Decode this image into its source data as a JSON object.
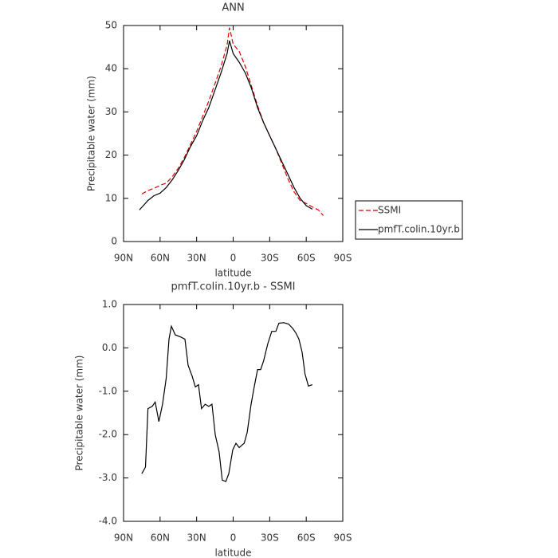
{
  "chart_data": [
    {
      "type": "line",
      "title": "ANN",
      "xlabel": "latitude",
      "ylabel": "Precipitable water (mm)",
      "xlim": [
        90,
        -90
      ],
      "xticks": [
        {
          "value": 90,
          "label": "90N"
        },
        {
          "value": 60,
          "label": "60N"
        },
        {
          "value": 30,
          "label": "30N"
        },
        0,
        {
          "value": -30,
          "label": "30S"
        },
        {
          "value": -60,
          "label": "60S"
        },
        {
          "value": -90,
          "label": "90S"
        }
      ],
      "ylim": [
        0,
        50
      ],
      "yticks": [
        0,
        10,
        20,
        30,
        40,
        50
      ],
      "legend": "right",
      "series": [
        {
          "name": "SSMI",
          "color": "#e00000",
          "linestyle": "dashed",
          "x": [
            75,
            70,
            65,
            60,
            55,
            50,
            45,
            40,
            35,
            30,
            25,
            20,
            15,
            10,
            5,
            3,
            0,
            -5,
            -10,
            -15,
            -20,
            -25,
            -30,
            -35,
            -40,
            -45,
            -50,
            -55,
            -60,
            -65,
            -70,
            -74
          ],
          "values": [
            11,
            11.8,
            12.3,
            13,
            13.5,
            15,
            17,
            19.5,
            22.5,
            25.5,
            29,
            32.5,
            36.5,
            40.5,
            45.5,
            49.5,
            45.7,
            44,
            40.5,
            36,
            31.5,
            27.5,
            24.5,
            21.5,
            18,
            14.5,
            11.5,
            9.5,
            8.8,
            8,
            7.3,
            6
          ]
        },
        {
          "name": "pmfT.colin.10yr.b",
          "color": "#000000",
          "linestyle": "solid",
          "x": [
            77,
            70,
            65,
            60,
            55,
            50,
            45,
            40,
            35,
            30,
            25,
            20,
            15,
            10,
            5,
            3,
            0,
            -5,
            -10,
            -15,
            -20,
            -25,
            -30,
            -35,
            -40,
            -45,
            -50,
            -55,
            -60,
            -65
          ],
          "values": [
            7.3,
            9.5,
            10.6,
            11.2,
            12.5,
            14.3,
            16.5,
            19,
            22,
            24.5,
            28,
            31,
            35,
            39,
            43.5,
            46.5,
            43.5,
            41.5,
            39,
            35.5,
            31,
            27.5,
            24.5,
            21.5,
            18.5,
            15.5,
            12.5,
            10,
            8.3,
            7.5
          ]
        }
      ]
    },
    {
      "type": "line",
      "title": "pmfT.colin.10yr.b - SSMI",
      "xlabel": "latitude",
      "ylabel": "Precipitable water (mm)",
      "xlim": [
        90,
        -90
      ],
      "xticks": [
        {
          "value": 90,
          "label": "90N"
        },
        {
          "value": 60,
          "label": "60N"
        },
        {
          "value": 30,
          "label": "30N"
        },
        0,
        {
          "value": -30,
          "label": "30S"
        },
        {
          "value": -60,
          "label": "60S"
        },
        {
          "value": -90,
          "label": "90S"
        }
      ],
      "ylim": [
        -4,
        1
      ],
      "yticks": [
        {
          "value": -4,
          "label": "-4.0"
        },
        {
          "value": -3,
          "label": "-3.0"
        },
        {
          "value": -2,
          "label": "-2.0"
        },
        {
          "value": -1,
          "label": "-1.0"
        },
        {
          "value": 0,
          "label": "0.0"
        },
        {
          "value": 1,
          "label": "1.0"
        }
      ],
      "series": [
        {
          "color": "#000000",
          "linestyle": "solid",
          "x": [
            75,
            72,
            70,
            66.5,
            64,
            61,
            58,
            55,
            52.7,
            50.7,
            47.5,
            43,
            39.6,
            37,
            33.7,
            31,
            28.5,
            26,
            23,
            20,
            17.4,
            14.7,
            11.5,
            9,
            6,
            3.6,
            0.3,
            -2.3,
            -5,
            -9,
            -11.5,
            -14.7,
            -17.3,
            -20,
            -22.6,
            -25,
            -28.5,
            -31.7,
            -35,
            -37.6,
            -41.6,
            -45.5,
            -48.8,
            -51.4,
            -54,
            -56.6,
            -59,
            -61.8,
            -65
          ],
          "values": [
            -2.9,
            -2.75,
            -1.4,
            -1.35,
            -1.25,
            -1.7,
            -1.3,
            -0.7,
            0.2,
            0.5,
            0.3,
            0.25,
            0.2,
            -0.4,
            -0.65,
            -0.9,
            -0.85,
            -1.4,
            -1.3,
            -1.35,
            -1.3,
            -2.0,
            -2.4,
            -3.05,
            -3.08,
            -2.9,
            -2.35,
            -2.2,
            -2.3,
            -2.2,
            -1.95,
            -1.3,
            -0.9,
            -0.5,
            -0.5,
            -0.3,
            0.1,
            0.38,
            0.38,
            0.57,
            0.58,
            0.55,
            0.45,
            0.35,
            0.2,
            -0.1,
            -0.6,
            -0.88,
            -0.85
          ]
        }
      ]
    }
  ]
}
